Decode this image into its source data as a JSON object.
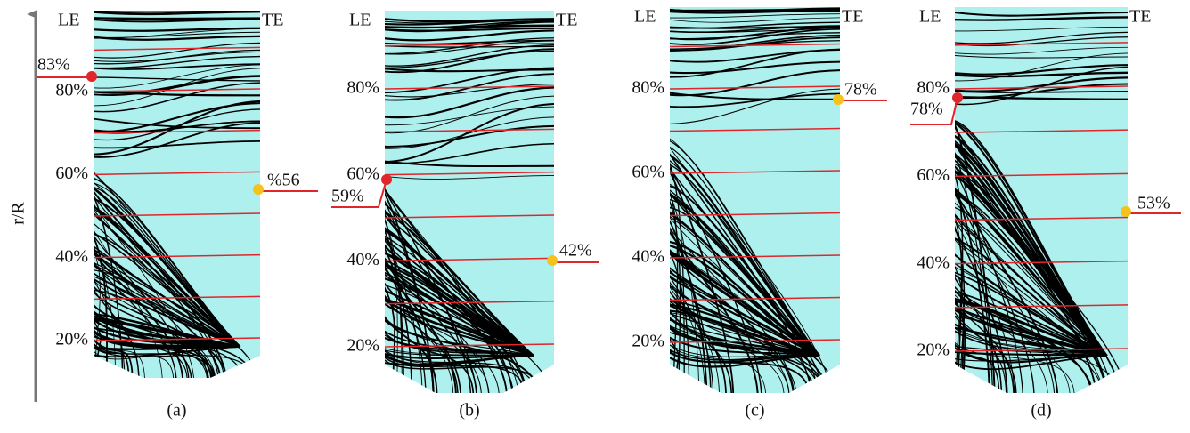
{
  "axis_label": "r/R",
  "panels": [
    {
      "label": "(a)",
      "le": "LE",
      "te": "TE",
      "ticks": [
        "20%",
        "40%",
        "60%",
        "80%"
      ],
      "markers": [
        {
          "text": "83%"
        },
        {
          "text": "%56"
        }
      ]
    },
    {
      "label": "(b)",
      "le": "LE",
      "te": "TE",
      "ticks": [
        "20%",
        "40%",
        "60%",
        "80%"
      ],
      "markers": [
        {
          "text": "59%"
        },
        {
          "text": "42%"
        }
      ]
    },
    {
      "label": "(c)",
      "le": "LE",
      "te": "TE",
      "ticks": [
        "20%",
        "40%",
        "60%",
        "80%"
      ],
      "markers": [
        {
          "text": "78%"
        }
      ]
    },
    {
      "label": "(d)",
      "le": "LE",
      "te": "TE",
      "ticks": [
        "20%",
        "40%",
        "60%",
        "80%"
      ],
      "markers": [
        {
          "text": "78%"
        },
        {
          "text": "53%"
        }
      ]
    }
  ]
}
